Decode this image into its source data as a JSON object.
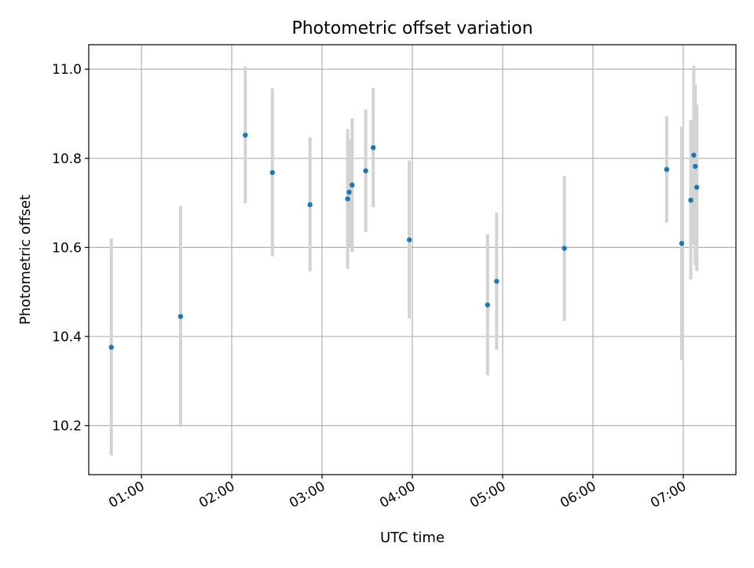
{
  "chart_data": {
    "type": "scatter",
    "title": "Photometric offset variation",
    "xlabel": "UTC time",
    "ylabel": "Photometric offset",
    "x_ticks": [
      "01:00",
      "02:00",
      "03:00",
      "04:00",
      "05:00",
      "06:00",
      "07:00"
    ],
    "y_ticks": [
      "10.2",
      "10.4",
      "10.6",
      "10.8",
      "11.0"
    ],
    "xlim": [
      "00:25",
      "07:35"
    ],
    "ylim": [
      10.09,
      11.055
    ],
    "grid": true,
    "marker_color": "#1f77b4",
    "errorbar_color": "#d3d3d3",
    "points": [
      {
        "x": "00:40",
        "y": 10.376,
        "ylow": 10.133,
        "yhigh": 10.62
      },
      {
        "x": "01:26",
        "y": 10.445,
        "ylow": 10.197,
        "yhigh": 10.693
      },
      {
        "x": "02:09",
        "y": 10.852,
        "ylow": 10.699,
        "yhigh": 11.006
      },
      {
        "x": "02:27",
        "y": 10.768,
        "ylow": 10.58,
        "yhigh": 10.957
      },
      {
        "x": "02:52",
        "y": 10.696,
        "ylow": 10.546,
        "yhigh": 10.847
      },
      {
        "x": "03:17",
        "y": 10.709,
        "ylow": 10.552,
        "yhigh": 10.866
      },
      {
        "x": "03:18",
        "y": 10.724,
        "ylow": 10.601,
        "yhigh": 10.843
      },
      {
        "x": "03:20",
        "y": 10.74,
        "ylow": 10.59,
        "yhigh": 10.89
      },
      {
        "x": "03:29",
        "y": 10.772,
        "ylow": 10.634,
        "yhigh": 10.91
      },
      {
        "x": "03:34",
        "y": 10.824,
        "ylow": 10.69,
        "yhigh": 10.958
      },
      {
        "x": "03:58",
        "y": 10.617,
        "ylow": 10.44,
        "yhigh": 10.795
      },
      {
        "x": "04:50",
        "y": 10.471,
        "ylow": 10.313,
        "yhigh": 10.63
      },
      {
        "x": "04:56",
        "y": 10.524,
        "ylow": 10.37,
        "yhigh": 10.678
      },
      {
        "x": "05:41",
        "y": 10.598,
        "ylow": 10.435,
        "yhigh": 10.76
      },
      {
        "x": "06:49",
        "y": 10.775,
        "ylow": 10.656,
        "yhigh": 10.895
      },
      {
        "x": "06:59",
        "y": 10.609,
        "ylow": 10.347,
        "yhigh": 10.871
      },
      {
        "x": "07:05",
        "y": 10.706,
        "ylow": 10.528,
        "yhigh": 10.886
      },
      {
        "x": "07:07",
        "y": 10.807,
        "ylow": 10.607,
        "yhigh": 11.008
      },
      {
        "x": "07:08",
        "y": 10.782,
        "ylow": 10.56,
        "yhigh": 10.965
      },
      {
        "x": "07:09",
        "y": 10.735,
        "ylow": 10.547,
        "yhigh": 10.92
      }
    ]
  }
}
